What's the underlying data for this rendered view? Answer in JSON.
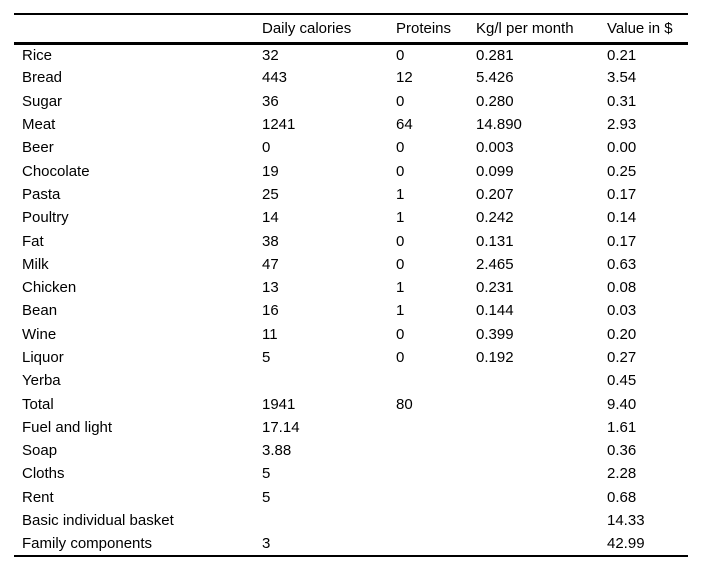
{
  "page": {
    "background_color": "#ffffff",
    "text_color": "#000000",
    "rule_color": "#000000"
  },
  "table": {
    "columns": [
      {
        "label": ""
      },
      {
        "label": "Daily calories"
      },
      {
        "label": "Proteins"
      },
      {
        "label": "Kg/l per month"
      },
      {
        "label": "Value in $"
      }
    ],
    "rows": [
      [
        "Rice",
        "32",
        "0",
        "0.281",
        "0.21"
      ],
      [
        "Bread",
        "443",
        "12",
        "5.426",
        "3.54"
      ],
      [
        "Sugar",
        "36",
        "0",
        "0.280",
        "0.31"
      ],
      [
        "Meat",
        "1241",
        "64",
        "14.890",
        "2.93"
      ],
      [
        "Beer",
        "0",
        "0",
        "0.003",
        "0.00"
      ],
      [
        "Chocolate",
        "19",
        "0",
        "0.099",
        "0.25"
      ],
      [
        "Pasta",
        "25",
        "1",
        "0.207",
        "0.17"
      ],
      [
        "Poultry",
        "14",
        "1",
        "0.242",
        "0.14"
      ],
      [
        "Fat",
        "38",
        "0",
        "0.131",
        "0.17"
      ],
      [
        "Milk",
        "47",
        "0",
        "2.465",
        "0.63"
      ],
      [
        "Chicken",
        "13",
        "1",
        "0.231",
        "0.08"
      ],
      [
        "Bean",
        "16",
        "1",
        "0.144",
        "0.03"
      ],
      [
        "Wine",
        "11",
        "0",
        "0.399",
        "0.20"
      ],
      [
        "Liquor",
        "5",
        "0",
        "0.192",
        "0.27"
      ],
      [
        "Yerba",
        "",
        "",
        "",
        "0.45"
      ],
      [
        "Total",
        "1941",
        "80",
        "",
        "9.40"
      ],
      [
        "Fuel and light",
        "17.14",
        "",
        "",
        "1.61"
      ],
      [
        "Soap",
        "3.88",
        "",
        "",
        "0.36"
      ],
      [
        "Cloths",
        "5",
        "",
        "",
        "2.28"
      ],
      [
        "Rent",
        "5",
        "",
        "",
        "0.68"
      ],
      [
        "Basic individual basket",
        "",
        "",
        "",
        "14.33"
      ],
      [
        "Family components",
        "3",
        "",
        "",
        "42.99"
      ]
    ]
  }
}
